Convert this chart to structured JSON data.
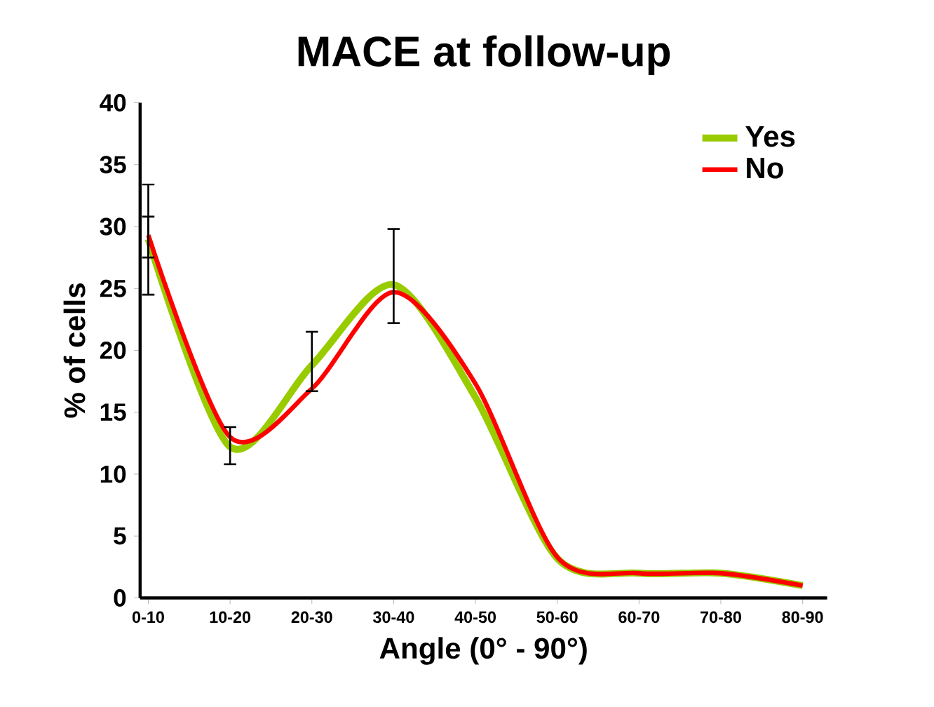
{
  "chart_data": {
    "type": "line",
    "title": "MACE at follow-up",
    "xlabel": "Angle (0° - 90°)",
    "ylabel": "% of cells",
    "categories": [
      "0-10",
      "10-20",
      "20-30",
      "30-40",
      "40-50",
      "50-60",
      "60-70",
      "70-80",
      "80-90"
    ],
    "series": [
      {
        "name": "Yes",
        "color": "#99cc00",
        "values": [
          29,
          12.2,
          18.8,
          25.3,
          16.2,
          3.2,
          2.0,
          2.0,
          1.0
        ],
        "errors": [
          [
            27.5,
            33.4
          ],
          [
            10.8,
            13.8
          ],
          null,
          null,
          null,
          null,
          null,
          null,
          null
        ]
      },
      {
        "name": "No",
        "color": "#ff0000",
        "values": [
          29.3,
          13,
          16.9,
          24.7,
          17.3,
          3.3,
          2.0,
          2.0,
          1.0
        ],
        "errors": [
          [
            24.5,
            30.8
          ],
          null,
          [
            16.7,
            21.5
          ],
          [
            22.2,
            29.8
          ],
          null,
          null,
          null,
          null,
          null
        ]
      }
    ],
    "ylim": [
      0,
      40
    ],
    "yticks": [
      0,
      5,
      10,
      15,
      20,
      25,
      30,
      35,
      40
    ],
    "legend": "top right",
    "marker": "none",
    "grid": false
  }
}
